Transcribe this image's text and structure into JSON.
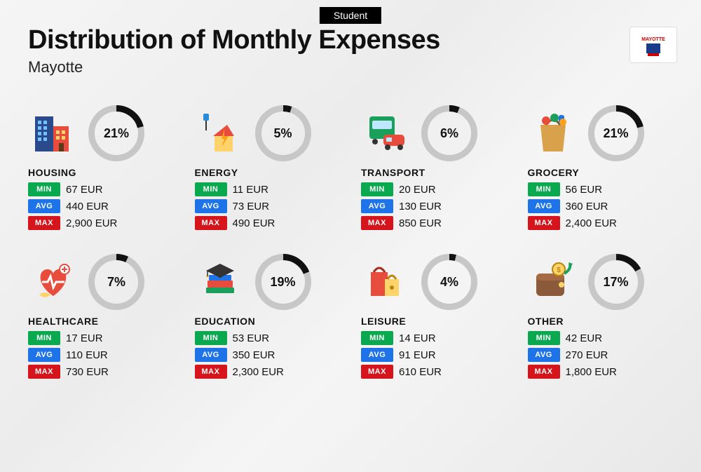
{
  "header_badge": "Student",
  "title": "Distribution of Monthly Expenses",
  "subtitle": "Mayotte",
  "region_label": "MAYOTTE",
  "currency": "EUR",
  "stat_labels": {
    "min": "MIN",
    "avg": "AVG",
    "max": "MAX"
  },
  "stat_colors": {
    "min": "#0aa84f",
    "avg": "#1e73e8",
    "max": "#d6141b"
  },
  "donut": {
    "size": 80,
    "ring_thickness": 9,
    "track_color": "#c7c7c7",
    "fill_color": "#111111",
    "start_angle": -90
  },
  "categories": [
    {
      "key": "housing",
      "name": "HOUSING",
      "percent": 21,
      "min": "67",
      "avg": "440",
      "max": "2,900"
    },
    {
      "key": "energy",
      "name": "ENERGY",
      "percent": 5,
      "min": "11",
      "avg": "73",
      "max": "490"
    },
    {
      "key": "transport",
      "name": "TRANSPORT",
      "percent": 6,
      "min": "20",
      "avg": "130",
      "max": "850"
    },
    {
      "key": "grocery",
      "name": "GROCERY",
      "percent": 21,
      "min": "56",
      "avg": "360",
      "max": "2,400"
    },
    {
      "key": "healthcare",
      "name": "HEALTHCARE",
      "percent": 7,
      "min": "17",
      "avg": "110",
      "max": "730"
    },
    {
      "key": "education",
      "name": "EDUCATION",
      "percent": 19,
      "min": "53",
      "avg": "350",
      "max": "2,300"
    },
    {
      "key": "leisure",
      "name": "LEISURE",
      "percent": 4,
      "min": "14",
      "avg": "91",
      "max": "610"
    },
    {
      "key": "other",
      "name": "OTHER",
      "percent": 17,
      "min": "42",
      "avg": "270",
      "max": "1,800"
    }
  ]
}
